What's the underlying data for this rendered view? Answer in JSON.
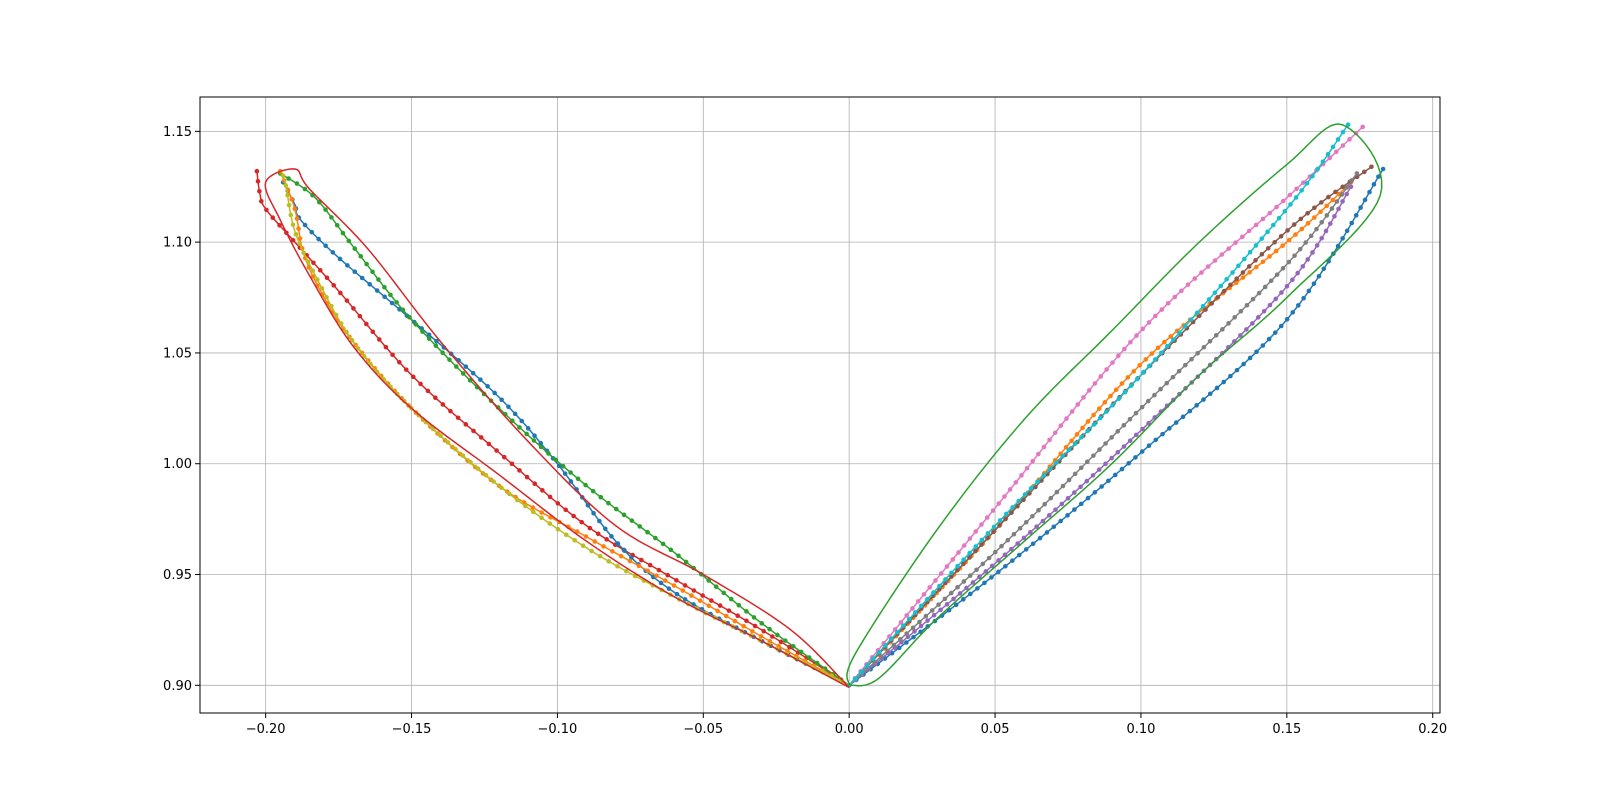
{
  "chart_data": {
    "type": "line",
    "title": "",
    "xlabel": "",
    "ylabel": "",
    "xlim": [
      -0.2225,
      0.2025
    ],
    "ylim": [
      0.8875,
      1.1655
    ],
    "grid": true,
    "legend": "none",
    "xticks": [
      "−0.20",
      "−0.15",
      "−0.10",
      "−0.05",
      "0.00",
      "0.05",
      "0.10",
      "0.15",
      "0.20"
    ],
    "xtick_values": [
      -0.2,
      -0.15,
      -0.1,
      -0.05,
      0.0,
      0.05,
      0.1,
      0.15,
      0.2
    ],
    "yticks": [
      "0.90",
      "0.95",
      "1.00",
      "1.05",
      "1.10",
      "1.15"
    ],
    "ytick_values": [
      0.9,
      0.95,
      1.0,
      1.05,
      1.1,
      1.15
    ],
    "series": [
      {
        "color": "#d62728",
        "markers": true,
        "n": 80,
        "points": [
          [
            0,
            0.9
          ],
          [
            -0.03,
            0.925
          ],
          [
            -0.06,
            0.948
          ],
          [
            -0.09,
            0.972
          ],
          [
            -0.12,
            1.005
          ],
          [
            -0.15,
            1.04
          ],
          [
            -0.175,
            1.078
          ],
          [
            -0.19,
            1.1
          ],
          [
            -0.2,
            1.115
          ],
          [
            -0.202,
            1.122
          ],
          [
            -0.203,
            1.132
          ]
        ]
      },
      {
        "color": "#1f77b4",
        "markers": true,
        "n": 80,
        "points": [
          [
            0,
            0.9
          ],
          [
            -0.03,
            0.92
          ],
          [
            -0.06,
            0.942
          ],
          [
            -0.08,
            0.965
          ],
          [
            -0.1,
            1.0
          ],
          [
            -0.12,
            1.03
          ],
          [
            -0.15,
            1.065
          ],
          [
            -0.175,
            1.093
          ],
          [
            -0.188,
            1.11
          ],
          [
            -0.19,
            1.117
          ],
          [
            -0.194,
            1.127
          ]
        ]
      },
      {
        "color": "#2ca02c",
        "markers": true,
        "n": 80,
        "points": [
          [
            0,
            0.9
          ],
          [
            -0.03,
            0.928
          ],
          [
            -0.06,
            0.96
          ],
          [
            -0.09,
            0.99
          ],
          [
            -0.12,
            1.025
          ],
          [
            -0.15,
            1.065
          ],
          [
            -0.17,
            1.098
          ],
          [
            -0.183,
            1.12
          ],
          [
            -0.195,
            1.131
          ]
        ]
      },
      {
        "color": "#ff7f0e",
        "markers": true,
        "n": 80,
        "points": [
          [
            0,
            0.9
          ],
          [
            -0.03,
            0.922
          ],
          [
            -0.06,
            0.945
          ],
          [
            -0.09,
            0.967
          ],
          [
            -0.12,
            0.99
          ],
          [
            -0.15,
            1.025
          ],
          [
            -0.17,
            1.055
          ],
          [
            -0.18,
            1.075
          ],
          [
            -0.187,
            1.095
          ],
          [
            -0.19,
            1.115
          ],
          [
            -0.195,
            1.132
          ]
        ]
      },
      {
        "color": "#bcbd22",
        "markers": true,
        "n": 80,
        "points": [
          [
            0,
            0.9
          ],
          [
            -0.03,
            0.92
          ],
          [
            -0.06,
            0.94
          ],
          [
            -0.09,
            0.962
          ],
          [
            -0.12,
            0.99
          ],
          [
            -0.15,
            1.025
          ],
          [
            -0.17,
            1.055
          ],
          [
            -0.183,
            1.085
          ],
          [
            -0.19,
            1.105
          ],
          [
            -0.193,
            1.125
          ],
          [
            -0.194,
            1.13
          ]
        ]
      },
      {
        "color": "#1f77b4",
        "markers": true,
        "n": 85,
        "points": [
          [
            0,
            0.9
          ],
          [
            0.05,
            0.95
          ],
          [
            0.1,
            1.005
          ],
          [
            0.15,
            1.065
          ],
          [
            0.183,
            1.133
          ]
        ]
      },
      {
        "color": "#ff7f0e",
        "markers": true,
        "n": 85,
        "points": [
          [
            0,
            0.9
          ],
          [
            0.05,
            0.97
          ],
          [
            0.1,
            1.045
          ],
          [
            0.15,
            1.1
          ],
          [
            0.172,
            1.127
          ]
        ]
      },
      {
        "color": "#9467bd",
        "markers": true,
        "n": 85,
        "points": [
          [
            0,
            0.9
          ],
          [
            0.05,
            0.955
          ],
          [
            0.1,
            1.015
          ],
          [
            0.15,
            1.08
          ],
          [
            0.172,
            1.125
          ]
        ]
      },
      {
        "color": "#8c564b",
        "markers": true,
        "n": 85,
        "points": [
          [
            0,
            0.9
          ],
          [
            0.05,
            0.97
          ],
          [
            0.1,
            1.04
          ],
          [
            0.15,
            1.105
          ],
          [
            0.179,
            1.134
          ]
        ]
      },
      {
        "color": "#7f7f7f",
        "markers": true,
        "n": 85,
        "points": [
          [
            0,
            0.9
          ],
          [
            0.05,
            0.96
          ],
          [
            0.1,
            1.025
          ],
          [
            0.15,
            1.09
          ],
          [
            0.174,
            1.131
          ]
        ]
      },
      {
        "color": "#e377c2",
        "markers": true,
        "n": 85,
        "points": [
          [
            0,
            0.9
          ],
          [
            0.05,
            0.98
          ],
          [
            0.1,
            1.06
          ],
          [
            0.15,
            1.12
          ],
          [
            0.176,
            1.152
          ]
        ]
      },
      {
        "color": "#17becf",
        "markers": true,
        "n": 85,
        "points": [
          [
            0,
            0.9
          ],
          [
            0.05,
            0.972
          ],
          [
            0.1,
            1.04
          ],
          [
            0.15,
            1.115
          ],
          [
            0.171,
            1.153
          ]
        ]
      },
      {
        "color": "#d62728",
        "markers": false,
        "points": [
          [
            0,
            0.899
          ],
          [
            -0.03,
            0.92
          ],
          [
            -0.06,
            0.94
          ],
          [
            -0.09,
            0.965
          ],
          [
            -0.12,
            0.995
          ],
          [
            -0.15,
            1.025
          ],
          [
            -0.17,
            1.053
          ],
          [
            -0.185,
            1.085
          ],
          [
            -0.195,
            1.11
          ],
          [
            -0.2,
            1.127
          ],
          [
            -0.19,
            1.133
          ],
          [
            -0.185,
            1.124
          ],
          [
            -0.165,
            1.097
          ],
          [
            -0.14,
            1.055
          ],
          [
            -0.11,
            1.01
          ],
          [
            -0.08,
            0.972
          ],
          [
            -0.05,
            0.95
          ],
          [
            -0.02,
            0.925
          ],
          [
            0,
            0.899
          ]
        ]
      },
      {
        "color": "#2ca02c",
        "markers": false,
        "points": [
          [
            0,
            0.9
          ],
          [
            0.01,
            0.903
          ],
          [
            0.03,
            0.93
          ],
          [
            0.06,
            0.965
          ],
          [
            0.09,
            1.0
          ],
          [
            0.12,
            1.04
          ],
          [
            0.15,
            1.075
          ],
          [
            0.182,
            1.121
          ],
          [
            0.169,
            1.153
          ],
          [
            0.15,
            1.135
          ],
          [
            0.12,
            1.1
          ],
          [
            0.09,
            1.06
          ],
          [
            0.06,
            1.02
          ],
          [
            0.03,
            0.97
          ],
          [
            0.002,
            0.914
          ],
          [
            0,
            0.9
          ]
        ]
      }
    ]
  }
}
